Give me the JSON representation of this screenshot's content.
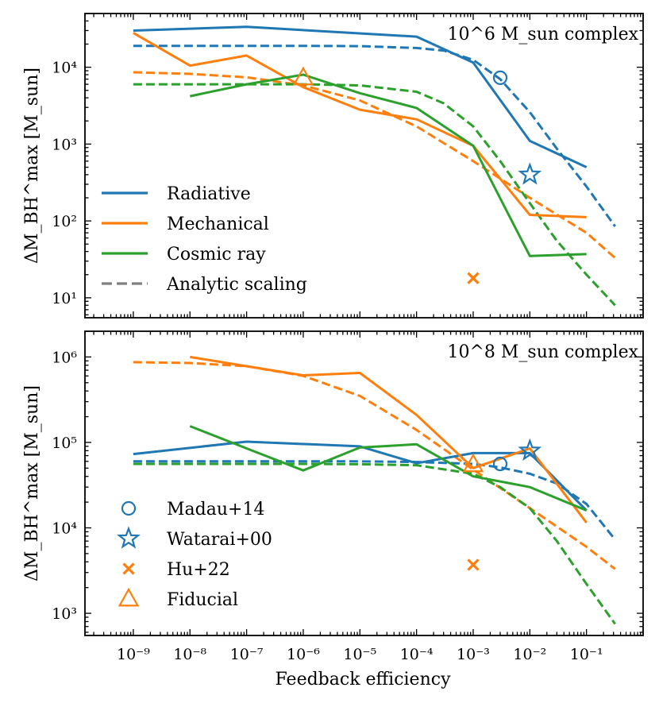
{
  "colors": {
    "radiative": "#1f77b4",
    "mechanical": "#ff7f0e",
    "cosmic_ray": "#2ca02c",
    "analytic": "#7f7f7f"
  },
  "chart_data": [
    {
      "type": "line",
      "panel_label": "10^6 M_sun complex",
      "xlabel": "Feedback efficiency",
      "ylabel": "ΔM_BH^max [M_sun]",
      "xscale": "log",
      "yscale": "log",
      "xlim": [
        1.4e-10,
        1.0
      ],
      "ylim": [
        5.5,
        50000
      ],
      "x_ticks": [
        1e-09,
        1e-08,
        1e-07,
        1e-06,
        1e-05,
        0.0001,
        0.001,
        0.01,
        0.1
      ],
      "y_ticks": [
        10,
        100,
        1000,
        10000
      ],
      "legend": {
        "placement": "lower-left",
        "entries": [
          {
            "key": "radiative",
            "label": "Radiative",
            "style": "solid"
          },
          {
            "key": "mechanical",
            "label": "Mechanical",
            "style": "solid"
          },
          {
            "key": "cosmic_ray",
            "label": "Cosmic ray",
            "style": "solid"
          },
          {
            "key": "analytic",
            "label": "Analytic scaling",
            "style": "dashed"
          }
        ]
      },
      "series": [
        {
          "name": "Radiative",
          "color_key": "radiative",
          "style": "solid",
          "x": [
            1e-09,
            1e-07,
            0.0001,
            0.001,
            0.01,
            0.1
          ],
          "y": [
            30000,
            33500,
            25000,
            11500,
            1100,
            500
          ]
        },
        {
          "name": "Mechanical",
          "color_key": "mechanical",
          "style": "solid",
          "x": [
            1e-09,
            1e-08,
            1e-07,
            1e-06,
            1e-05,
            0.0001,
            0.001,
            0.01,
            0.1
          ],
          "y": [
            28000,
            10500,
            14200,
            5500,
            2800,
            2100,
            950,
            120,
            112
          ]
        },
        {
          "name": "Cosmic ray",
          "color_key": "cosmic_ray",
          "style": "solid",
          "x": [
            1e-08,
            1e-07,
            1e-06,
            1e-05,
            0.0001,
            0.001,
            0.01,
            0.1
          ],
          "y": [
            4200,
            6000,
            8000,
            4600,
            2950,
            950,
            35,
            37
          ]
        },
        {
          "name": "Radiative analytic",
          "color_key": "radiative",
          "style": "dashed",
          "x": [
            1e-09,
            1e-08,
            1e-07,
            1e-06,
            1e-05,
            0.0001,
            0.0003,
            0.001,
            0.003,
            0.01,
            0.03,
            0.1,
            0.32
          ],
          "y": [
            19000,
            19000,
            19000,
            19000,
            18800,
            17800,
            16500,
            12500,
            7000,
            2600,
            870,
            280,
            85
          ]
        },
        {
          "name": "Mechanical analytic",
          "color_key": "mechanical",
          "style": "dashed",
          "x": [
            1e-09,
            1e-08,
            1e-07,
            1e-06,
            1e-05,
            0.0001,
            0.001,
            0.01,
            0.1,
            0.32
          ],
          "y": [
            8600,
            8200,
            7400,
            5800,
            3700,
            1700,
            600,
            200,
            70,
            33
          ]
        },
        {
          "name": "Cosmic ray analytic",
          "color_key": "cosmic_ray",
          "style": "dashed",
          "x": [
            1e-09,
            1e-08,
            1e-07,
            1e-06,
            1e-05,
            0.0001,
            0.0003,
            0.001,
            0.003,
            0.01,
            0.03,
            0.1,
            0.32
          ],
          "y": [
            6000,
            6000,
            6000,
            6000,
            5800,
            4800,
            3400,
            1700,
            600,
            170,
            55,
            20,
            8
          ]
        }
      ],
      "markers": [
        {
          "name": "Madau+14",
          "shape": "circle",
          "color_key": "radiative",
          "x": 0.003,
          "y": 7300
        },
        {
          "name": "Watarai+00",
          "shape": "star",
          "color_key": "radiative",
          "x": 0.01,
          "y": 400
        },
        {
          "name": "Hu+22",
          "shape": "x",
          "color_key": "mechanical",
          "x": 0.001,
          "y": 18
        },
        {
          "name": "Fiducial",
          "shape": "triangle",
          "color_key": "mechanical",
          "x": 1e-06,
          "y": 7300
        }
      ]
    },
    {
      "type": "line",
      "panel_label": "10^8 M_sun complex",
      "xlabel": "Feedback efficiency",
      "ylabel": "ΔM_BH^max [M_sun]",
      "xscale": "log",
      "yscale": "log",
      "xlim": [
        1.4e-10,
        1.0
      ],
      "ylim": [
        550,
        2000000
      ],
      "x_ticks": [
        1e-09,
        1e-08,
        1e-07,
        1e-06,
        1e-05,
        0.0001,
        0.001,
        0.01,
        0.1
      ],
      "y_ticks": [
        1000,
        10000,
        100000,
        1000000
      ],
      "legend": {
        "placement": "lower-left",
        "entries": [
          {
            "key": "madau",
            "label": "Madau+14",
            "shape": "circle",
            "color_key": "radiative"
          },
          {
            "key": "watarai",
            "label": "Watarai+00",
            "shape": "star",
            "color_key": "radiative"
          },
          {
            "key": "hu",
            "label": "Hu+22",
            "shape": "x",
            "color_key": "mechanical"
          },
          {
            "key": "fiducial",
            "label": "Fiducial",
            "shape": "triangle",
            "color_key": "mechanical"
          }
        ]
      },
      "series": [
        {
          "name": "Radiative",
          "color_key": "radiative",
          "style": "solid",
          "x": [
            1e-09,
            1e-07,
            1e-05,
            0.0001,
            0.001,
            0.01,
            0.1
          ],
          "y": [
            73000,
            102000,
            90000,
            57000,
            75000,
            75000,
            16000
          ]
        },
        {
          "name": "Mechanical",
          "color_key": "mechanical",
          "style": "solid",
          "x": [
            1e-08,
            1e-07,
            1e-06,
            1e-05,
            0.0001,
            0.001,
            0.01,
            0.1
          ],
          "y": [
            1000000,
            780000,
            610000,
            650000,
            210000,
            50000,
            85000,
            11500
          ]
        },
        {
          "name": "Cosmic ray",
          "color_key": "cosmic_ray",
          "style": "solid",
          "x": [
            1e-08,
            1e-07,
            1e-06,
            1e-05,
            0.0001,
            0.001,
            0.01,
            0.1
          ],
          "y": [
            155000,
            85000,
            47000,
            87000,
            95000,
            40000,
            30000,
            16000
          ]
        },
        {
          "name": "Radiative analytic",
          "color_key": "radiative",
          "style": "dashed",
          "x": [
            1e-09,
            1e-08,
            1e-07,
            1e-06,
            1e-05,
            0.0001,
            0.001,
            0.003,
            0.01,
            0.03,
            0.1,
            0.32
          ],
          "y": [
            60000,
            60000,
            60000,
            60000,
            60000,
            59000,
            56000,
            51000,
            43000,
            33000,
            19000,
            7300
          ]
        },
        {
          "name": "Mechanical analytic",
          "color_key": "mechanical",
          "style": "dashed",
          "x": [
            1e-09,
            1e-08,
            1e-07,
            1e-06,
            1e-05,
            0.0001,
            0.001,
            0.01,
            0.1,
            0.32
          ],
          "y": [
            870000,
            850000,
            780000,
            600000,
            350000,
            140000,
            48000,
            17000,
            6000,
            3300
          ]
        },
        {
          "name": "Cosmic ray analytic",
          "color_key": "cosmic_ray",
          "style": "dashed",
          "x": [
            1e-09,
            1e-08,
            1e-07,
            1e-06,
            1e-05,
            0.0001,
            0.001,
            0.003,
            0.01,
            0.03,
            0.1,
            0.32
          ],
          "y": [
            56000,
            56000,
            56000,
            56000,
            55500,
            54000,
            43000,
            30000,
            17000,
            7000,
            2200,
            750
          ]
        }
      ],
      "markers": [
        {
          "name": "Madau+14",
          "shape": "circle",
          "color_key": "radiative",
          "x": 0.003,
          "y": 56000
        },
        {
          "name": "Watarai+00",
          "shape": "star",
          "color_key": "radiative",
          "x": 0.01,
          "y": 80000
        },
        {
          "name": "Hu+22",
          "shape": "x",
          "color_key": "mechanical",
          "x": 0.001,
          "y": 3700
        },
        {
          "name": "Fiducial",
          "shape": "triangle",
          "color_key": "mechanical",
          "x": 0.001,
          "y": 55000
        }
      ]
    }
  ]
}
